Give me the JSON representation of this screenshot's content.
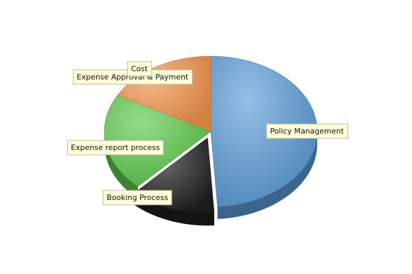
{
  "chart_data": {
    "type": "pie",
    "title": "",
    "legend": "none",
    "slices": [
      {
        "label": "Policy Management",
        "value": 49,
        "color": "#5b9bd5",
        "exploded": false
      },
      {
        "label": "Booking Process",
        "value": 13,
        "color": "#1f1f1f",
        "exploded": true
      },
      {
        "label": "Expense report process",
        "value": 21,
        "color": "#5cc84a",
        "exploded": false
      },
      {
        "label": "Expense Approval & Payment",
        "value": 17,
        "color": "#f0914a",
        "exploded": false
      },
      {
        "label": "Cost",
        "value": 0,
        "color": "#f0914a",
        "exploded": false
      }
    ]
  }
}
